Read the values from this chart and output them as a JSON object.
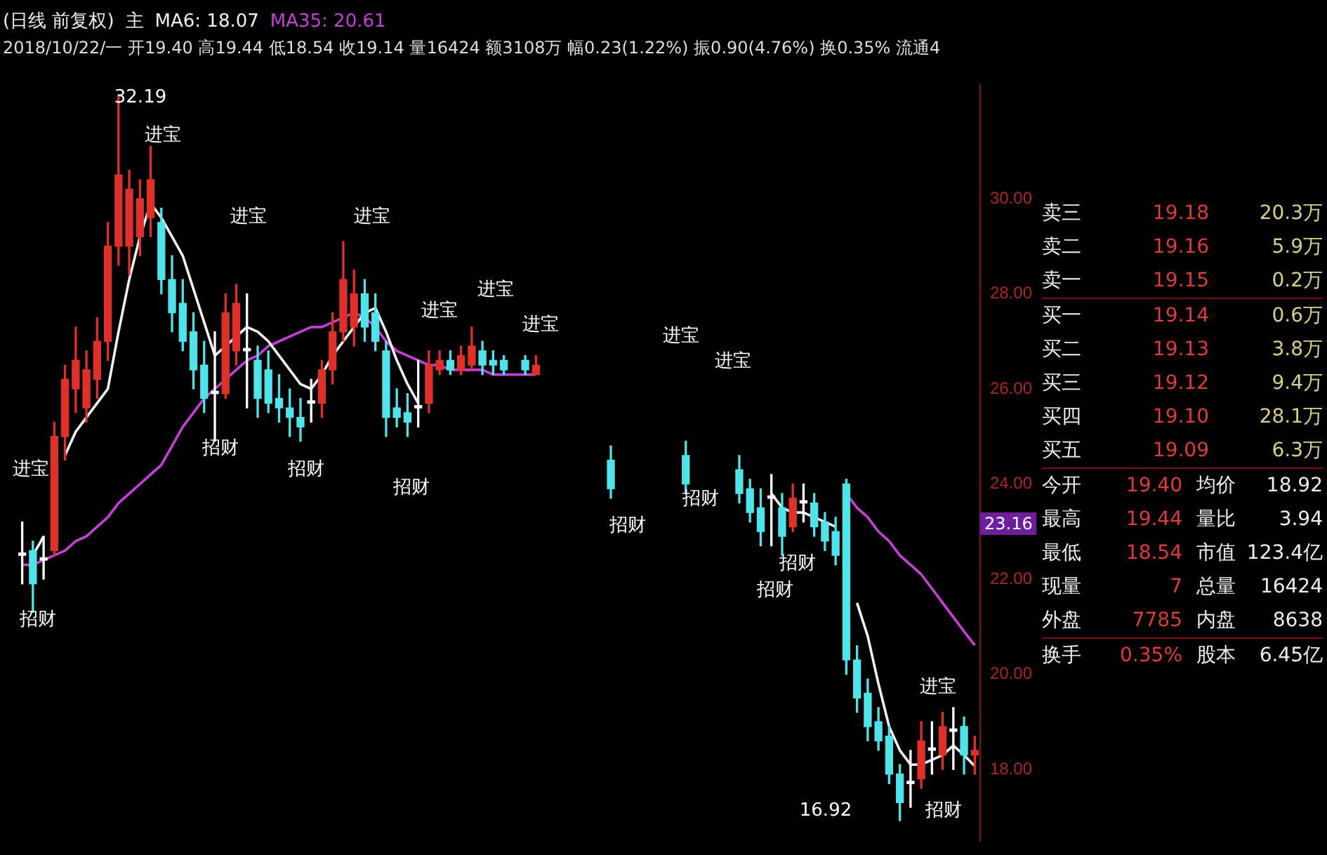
{
  "chart_data": {
    "type": "candlestick",
    "title": "(日线 前复权)",
    "subtitle": "2018/10/22/一 开19.40 高19.44 低18.54 收19.14 量16424 额3108万 幅0.23(1.22%) 振0.90(4.76%) 换0.35% 流通4",
    "tick_labels": "y",
    "categories": [
      null,
      null,
      null,
      null,
      null,
      null,
      null,
      null,
      null,
      null,
      null,
      null,
      null,
      null,
      null,
      null,
      null,
      null,
      null,
      null,
      null,
      null,
      null,
      null,
      null,
      null,
      null,
      null,
      null,
      null,
      null,
      null,
      null,
      null,
      null,
      null,
      null,
      null,
      null,
      null,
      null,
      null,
      null,
      null,
      null,
      null,
      null,
      null,
      null,
      null,
      null,
      null,
      null,
      null,
      null,
      null,
      null,
      null,
      null,
      null,
      null,
      null,
      null,
      null,
      null,
      null,
      null,
      null,
      null,
      null,
      null,
      null,
      null,
      null,
      null,
      null,
      null,
      null,
      null,
      null,
      null,
      null,
      null,
      null,
      null,
      null,
      null,
      null,
      null,
      null
    ],
    "ohlc": [
      [
        22.5,
        23.2,
        21.9,
        22.55
      ],
      [
        22.6,
        22.8,
        21.3,
        21.9
      ],
      [
        22.4,
        22.9,
        22.0,
        22.45
      ],
      [
        22.6,
        25.3,
        22.5,
        25.0
      ],
      [
        25.0,
        26.5,
        24.5,
        26.2
      ],
      [
        26.0,
        27.3,
        25.5,
        26.6
      ],
      [
        25.6,
        26.8,
        25.3,
        26.4
      ],
      [
        26.2,
        27.5,
        25.8,
        27.0
      ],
      [
        27.0,
        29.5,
        26.6,
        29.0
      ],
      [
        29.0,
        32.19,
        28.6,
        30.5
      ],
      [
        29.0,
        30.6,
        28.4,
        30.2
      ],
      [
        29.2,
        30.4,
        28.8,
        30.0
      ],
      [
        29.6,
        31.1,
        29.2,
        30.4
      ],
      [
        29.5,
        29.8,
        28.0,
        28.3
      ],
      [
        28.3,
        28.8,
        27.2,
        27.6
      ],
      [
        27.8,
        28.3,
        26.8,
        27.0
      ],
      [
        27.2,
        27.6,
        26.0,
        26.4
      ],
      [
        26.5,
        27.0,
        25.5,
        25.8
      ],
      [
        25.9,
        27.2,
        24.9,
        25.95
      ],
      [
        25.9,
        28.0,
        25.8,
        27.6
      ],
      [
        26.8,
        28.2,
        26.5,
        27.8
      ],
      [
        26.8,
        28.0,
        25.6,
        26.85
      ],
      [
        26.6,
        26.9,
        25.4,
        25.8
      ],
      [
        26.4,
        26.8,
        25.5,
        25.7
      ],
      [
        25.8,
        26.3,
        25.3,
        25.6
      ],
      [
        25.6,
        26.0,
        25.0,
        25.4
      ],
      [
        25.4,
        25.8,
        24.9,
        25.2
      ],
      [
        25.7,
        26.2,
        25.3,
        25.75
      ],
      [
        25.7,
        26.6,
        25.4,
        26.4
      ],
      [
        26.4,
        27.6,
        26.1,
        27.2
      ],
      [
        27.2,
        29.1,
        27.0,
        28.3
      ],
      [
        27.3,
        28.5,
        26.9,
        28.0
      ],
      [
        28.0,
        28.3,
        27.0,
        27.3
      ],
      [
        27.6,
        28.0,
        26.8,
        27.0
      ],
      [
        26.8,
        27.0,
        25.0,
        25.4
      ],
      [
        25.6,
        26.0,
        25.2,
        25.4
      ],
      [
        25.5,
        25.9,
        25.0,
        25.3
      ],
      [
        25.6,
        26.6,
        25.2,
        25.65
      ],
      [
        25.7,
        26.8,
        25.5,
        26.5
      ],
      [
        26.4,
        26.8,
        26.3,
        26.6
      ],
      [
        26.6,
        26.8,
        26.3,
        26.4
      ],
      [
        26.4,
        26.9,
        26.3,
        26.7
      ],
      [
        26.5,
        27.3,
        26.4,
        26.9
      ],
      [
        26.8,
        27.0,
        26.3,
        26.5
      ],
      [
        26.6,
        26.8,
        26.3,
        26.5
      ],
      [
        26.6,
        26.7,
        26.3,
        26.4
      ],
      null,
      [
        26.6,
        26.7,
        26.3,
        26.4
      ],
      [
        26.3,
        26.7,
        26.3,
        26.5
      ],
      null,
      null,
      null,
      null,
      null,
      null,
      [
        24.5,
        24.8,
        23.7,
        23.9
      ],
      null,
      null,
      null,
      null,
      null,
      null,
      [
        24.6,
        24.9,
        23.8,
        24.0
      ],
      null,
      null,
      null,
      null,
      [
        24.3,
        24.6,
        23.6,
        23.8
      ],
      [
        23.9,
        24.1,
        23.2,
        23.4
      ],
      [
        23.5,
        23.9,
        22.7,
        23.0
      ],
      [
        23.7,
        24.2,
        22.7,
        23.75
      ],
      [
        23.5,
        23.8,
        22.5,
        22.9
      ],
      [
        23.1,
        24.0,
        23.0,
        23.7
      ],
      [
        23.6,
        24.0,
        23.2,
        23.65
      ],
      [
        23.6,
        23.8,
        22.9,
        23.1
      ],
      [
        23.2,
        23.4,
        22.6,
        22.8
      ],
      [
        23.0,
        23.3,
        22.3,
        22.5
      ],
      [
        24.0,
        24.1,
        20.0,
        20.3
      ],
      [
        20.3,
        20.6,
        19.2,
        19.5
      ],
      [
        19.6,
        19.9,
        18.6,
        18.9
      ],
      [
        19.0,
        19.3,
        18.4,
        18.6
      ],
      [
        18.7,
        18.9,
        17.7,
        17.9
      ],
      [
        17.9,
        18.1,
        16.92,
        17.3
      ],
      [
        17.7,
        18.4,
        17.2,
        17.75
      ],
      [
        17.8,
        19.0,
        17.6,
        18.6
      ],
      [
        18.4,
        19.0,
        17.9,
        18.45
      ],
      [
        18.3,
        19.2,
        18.0,
        18.9
      ],
      [
        18.8,
        19.3,
        18.0,
        18.85
      ],
      [
        18.9,
        19.1,
        17.9,
        18.3
      ],
      [
        18.3,
        18.7,
        17.9,
        18.4
      ]
    ],
    "colors": [
      "#ffffff",
      "#4fe3ea",
      "#ffffff",
      "#e0302a",
      "#e0302a",
      "#e0302a",
      "#e0302a",
      "#e0302a",
      "#e0302a",
      "#e0302a",
      "#e0302a",
      "#e0302a",
      "#e0302a",
      "#4fe3ea",
      "#4fe3ea",
      "#4fe3ea",
      "#4fe3ea",
      "#4fe3ea",
      "#ffffff",
      "#e0302a",
      "#e0302a",
      "#ffffff",
      "#4fe3ea",
      "#4fe3ea",
      "#4fe3ea",
      "#4fe3ea",
      "#4fe3ea",
      "#ffffff",
      "#e0302a",
      "#e0302a",
      "#e0302a",
      "#e0302a",
      "#4fe3ea",
      "#4fe3ea",
      "#4fe3ea",
      "#4fe3ea",
      "#4fe3ea",
      "#ffffff",
      "#e0302a",
      "#e0302a",
      "#4fe3ea",
      "#e0302a",
      "#e0302a",
      "#4fe3ea",
      "#4fe3ea",
      "#4fe3ea",
      null,
      "#4fe3ea",
      "#e0302a",
      null,
      null,
      null,
      null,
      null,
      null,
      "#4fe3ea",
      null,
      null,
      null,
      null,
      null,
      null,
      "#4fe3ea",
      null,
      null,
      null,
      null,
      "#4fe3ea",
      "#4fe3ea",
      "#4fe3ea",
      "#ffffff",
      "#4fe3ea",
      "#e0302a",
      "#ffffff",
      "#4fe3ea",
      "#4fe3ea",
      "#4fe3ea",
      "#4fe3ea",
      "#4fe3ea",
      "#4fe3ea",
      "#4fe3ea",
      "#4fe3ea",
      "#4fe3ea",
      "#ffffff",
      "#e0302a",
      "#ffffff",
      "#e0302a",
      "#ffffff",
      "#4fe3ea",
      "#e0302a"
    ],
    "ylim": [
      16.5,
      32.4
    ],
    "yticks": [
      {
        "value": 18,
        "label": "18.00"
      },
      {
        "value": 20,
        "label": "20.00"
      },
      {
        "value": 22,
        "label": "22.00"
      },
      {
        "value": 24,
        "label": "24.00"
      },
      {
        "value": 26,
        "label": "26.00"
      },
      {
        "value": 28,
        "label": "28.00"
      },
      {
        "value": 30,
        "label": "30.00"
      }
    ],
    "series": [
      {
        "name": "MA6: 18.07",
        "type": "line",
        "color": "#f2f2f2",
        "values": [
          null,
          22.5,
          22.9,
          null,
          24.6,
          25.1,
          25.4,
          25.7,
          26.0,
          27.2,
          28.3,
          29.2,
          29.9,
          29.6,
          29.2,
          28.8,
          28.1,
          27.4,
          26.7,
          26.9,
          27.1,
          27.3,
          27.2,
          27.0,
          26.7,
          26.4,
          26.1,
          26.0,
          26.3,
          26.7,
          27.0,
          27.3,
          27.6,
          27.7,
          27.2,
          26.6,
          26.1,
          25.7,
          null,
          null,
          null,
          null,
          null,
          null,
          null,
          null,
          null,
          null,
          null,
          null,
          null,
          null,
          null,
          null,
          null,
          null,
          null,
          null,
          null,
          null,
          null,
          null,
          null,
          null,
          null,
          null,
          null,
          null,
          null,
          null,
          23.8,
          23.5,
          23.4,
          23.4,
          23.3,
          23.2,
          23.1,
          null,
          21.5,
          20.8,
          19.8,
          18.9,
          18.4,
          18.1,
          18.1,
          18.2,
          18.3,
          18.5,
          18.3,
          18.07
        ]
      },
      {
        "name": "MA35: 20.61",
        "type": "line",
        "color": "#c83fd8",
        "values": [
          22.3,
          22.3,
          22.4,
          22.5,
          22.6,
          22.8,
          22.9,
          23.1,
          23.3,
          23.6,
          23.8,
          24.0,
          24.2,
          24.4,
          24.8,
          25.2,
          25.5,
          25.8,
          26.0,
          26.2,
          26.4,
          26.6,
          26.7,
          26.9,
          27.0,
          27.1,
          27.2,
          27.3,
          27.3,
          27.4,
          27.5,
          27.6,
          27.5,
          27.3,
          27.0,
          26.8,
          26.7,
          26.6,
          26.5,
          26.5,
          26.4,
          26.4,
          26.4,
          26.4,
          26.3,
          26.3,
          26.3,
          26.3,
          26.3,
          null,
          null,
          null,
          null,
          null,
          null,
          null,
          null,
          null,
          null,
          null,
          null,
          null,
          null,
          null,
          null,
          null,
          null,
          null,
          null,
          null,
          null,
          null,
          null,
          null,
          null,
          null,
          null,
          23.8,
          23.5,
          23.3,
          23.0,
          22.8,
          22.5,
          22.3,
          22.1,
          21.8,
          21.5,
          21.2,
          20.9,
          20.61
        ]
      }
    ],
    "annotations": [
      "主",
      "进宝",
      "招财",
      "32.19",
      "进宝",
      "招财",
      "进宝",
      "招财",
      "进宝",
      "招财",
      "进宝",
      "进宝",
      "进宝",
      "招财",
      "进宝",
      "招财",
      "进宝",
      "招财",
      "招财",
      "16.92",
      "进宝",
      "招财",
      "23.16",
      "卖三 19.18 20.3万",
      "卖二 19.16 5.9万",
      "卖一 19.15 0.2万",
      "买一 19.14 0.6万",
      "买二 19.13 3.8万",
      "买三 19.12 9.4万",
      "买四 19.10 28.1万",
      "买五 19.09 6.3万",
      "今开 19.40 均价 18.92",
      "最高 19.44 量比 3.94",
      "最低 18.54 市值 123.4亿",
      "现量 7 总量 16424",
      "外盘 7785 内盘 8638",
      "换手 0.35% 股本 6.45亿"
    ]
  }
}
